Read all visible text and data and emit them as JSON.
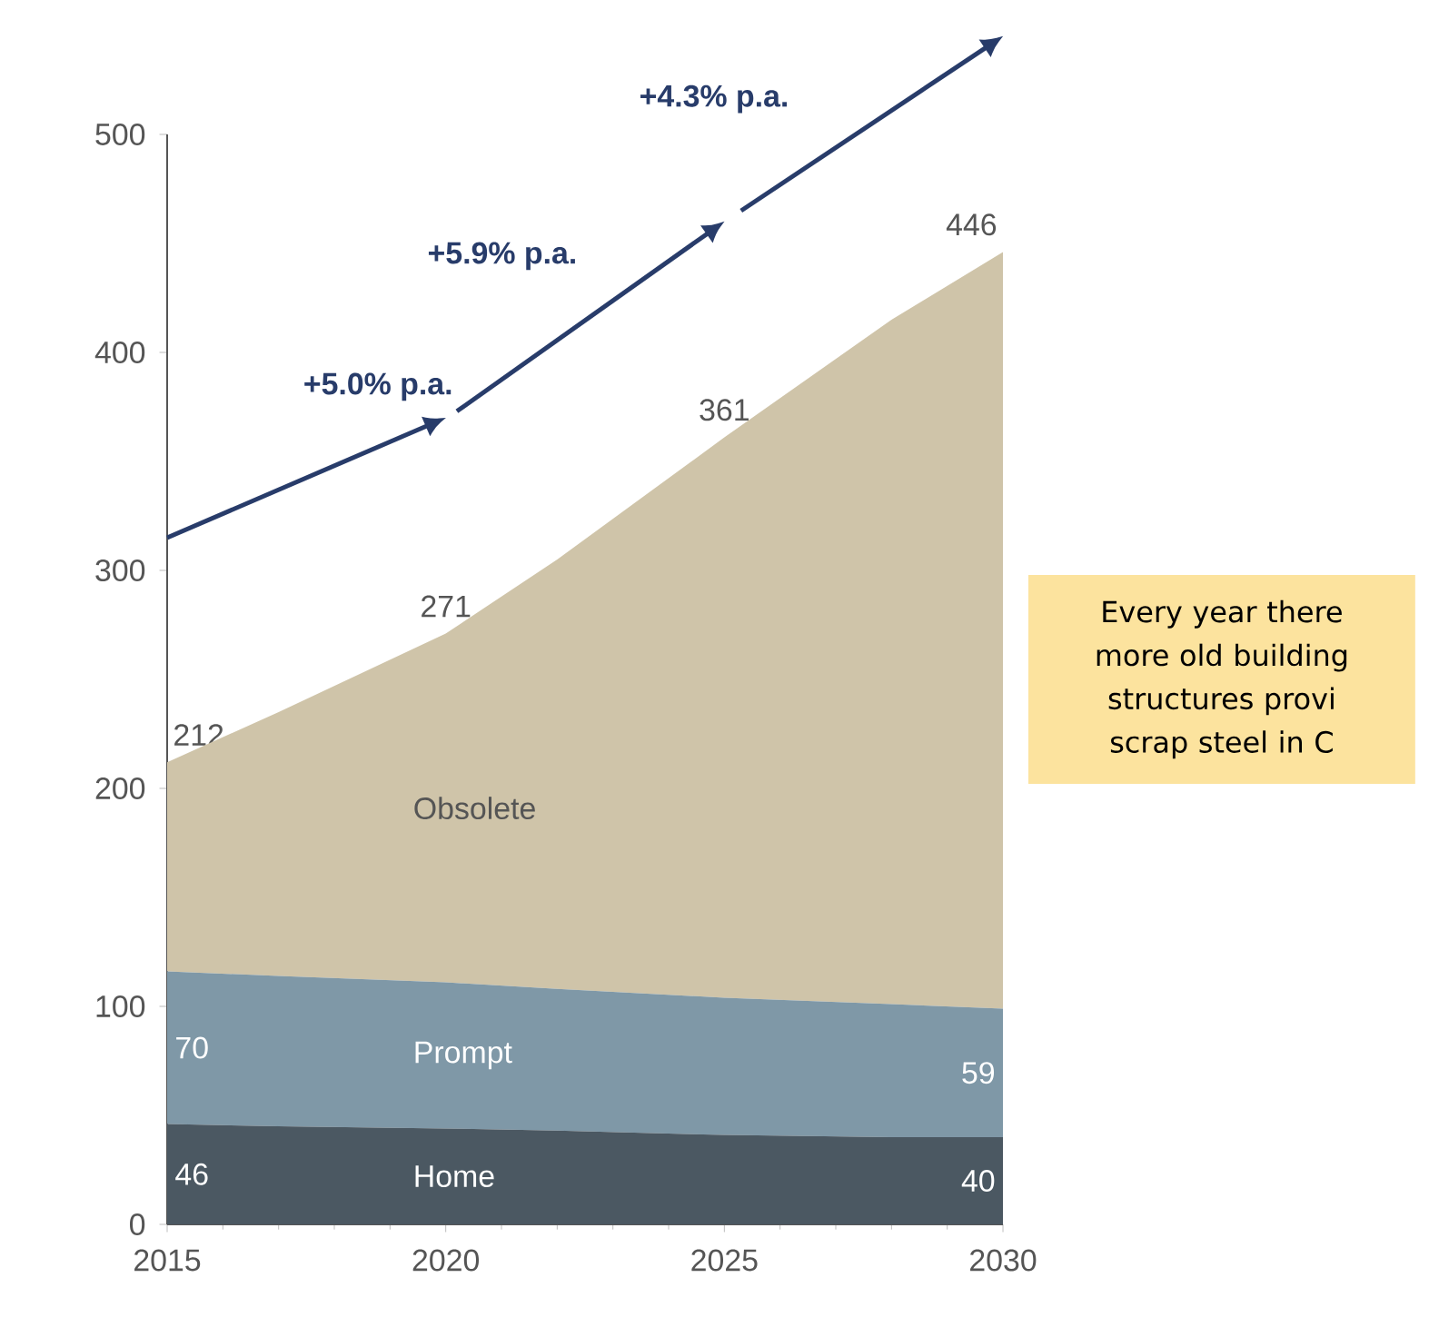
{
  "chart_data": {
    "type": "area",
    "stacked": true,
    "x": [
      2015,
      2017,
      2020,
      2022,
      2025,
      2028,
      2030
    ],
    "xlim": [
      2015,
      2030
    ],
    "xticks": [
      2015,
      2020,
      2025,
      2030
    ],
    "ylim": [
      0,
      500
    ],
    "yticks": [
      0,
      100,
      200,
      300,
      400,
      500
    ],
    "series": [
      {
        "name": "Home",
        "color": "#4b5862",
        "values": [
          46,
          45,
          44,
          43,
          41,
          40,
          40
        ],
        "value_labels": [
          "46",
          null,
          null,
          null,
          null,
          null,
          "40"
        ]
      },
      {
        "name": "Prompt",
        "color": "#7f98a7",
        "values": [
          70,
          69,
          67,
          65,
          63,
          61,
          59
        ],
        "value_labels": [
          "70",
          null,
          null,
          null,
          null,
          null,
          "59"
        ]
      },
      {
        "name": "Obsolete",
        "color": "#cfc4a9",
        "values": [
          96,
          121,
          160,
          197,
          257,
          314,
          347
        ]
      }
    ],
    "totals": [
      "212",
      null,
      "271",
      null,
      "361",
      null,
      "446"
    ],
    "annotations": [
      "+5.0% p.a.",
      "+5.9% p.a.",
      "+4.3% p.a.",
      "Every year there",
      "more old building",
      "structures provi",
      "scrap steel in C"
    ]
  }
}
